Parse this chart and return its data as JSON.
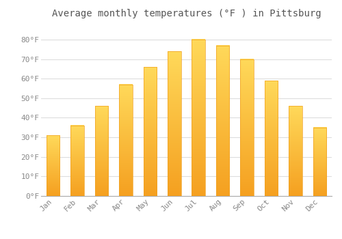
{
  "title": "Average monthly temperatures (°F ) in Pittsburg",
  "months": [
    "Jan",
    "Feb",
    "Mar",
    "Apr",
    "May",
    "Jun",
    "Jul",
    "Aug",
    "Sep",
    "Oct",
    "Nov",
    "Dec"
  ],
  "values": [
    31,
    36,
    46,
    57,
    66,
    74,
    80,
    77,
    70,
    59,
    46,
    35
  ],
  "bar_color_bottom": "#F5A623",
  "bar_color_top": "#FFD966",
  "background_color": "#FFFFFF",
  "grid_color": "#DDDDDD",
  "text_color": "#888888",
  "ylim": [
    0,
    88
  ],
  "yticks": [
    0,
    10,
    20,
    30,
    40,
    50,
    60,
    70,
    80
  ],
  "ytick_labels": [
    "0°F",
    "10°F",
    "20°F",
    "30°F",
    "40°F",
    "50°F",
    "60°F",
    "70°F",
    "80°F"
  ],
  "title_fontsize": 10,
  "tick_fontsize": 8,
  "font_family": "monospace",
  "bar_width": 0.55
}
